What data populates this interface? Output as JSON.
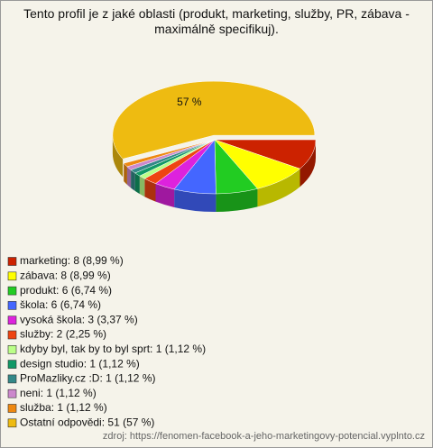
{
  "chart_data": {
    "type": "pie",
    "title": "Tento profil je z jaké oblasti (produkt, marketing, služby, PR, zábava - maximálně specifikuj).",
    "categories": [
      "marketing: 8 (8,99 %)",
      "zábava: 8 (8,99 %)",
      "produkt: 6 (6,74 %)",
      "škola: 6 (6,74 %)",
      "vysoká škola: 3 (3,37 %)",
      "služby: 2 (2,25 %)",
      "kdyby byl, tak by to byl sprt: 1 (1,12 %)",
      "design studio: 1 (1,12 %)",
      "ProMazliky.cz :D: 1 (1,12 %)",
      "neni: 1 (1,12 %)",
      "služba: 1 (1,12 %)",
      "Ostatní odpovědi: 51 (57 %)"
    ],
    "values": [
      8.99,
      8.99,
      6.74,
      6.74,
      3.37,
      2.25,
      1.12,
      1.12,
      1.12,
      1.12,
      1.12,
      57
    ],
    "value_labels": [
      null,
      null,
      null,
      null,
      null,
      null,
      null,
      null,
      null,
      null,
      null,
      "57 %"
    ],
    "colors": [
      "#cc2200",
      "#ffff00",
      "#22cc22",
      "#4466ff",
      "#dd22dd",
      "#ee4411",
      "#bbff88",
      "#119966",
      "#338888",
      "#cc88cc",
      "#ee8811",
      "#eebb11"
    ],
    "source": "zdroj: https://fenomen-facebook-a-jeho-marketingovy-potencial.vyplnto.cz"
  }
}
